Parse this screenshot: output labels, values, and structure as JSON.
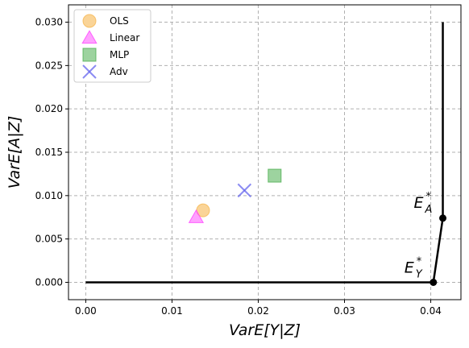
{
  "chart_data": {
    "type": "scatter",
    "xlabel": "VarE[Y|Z]",
    "ylabel": "VarE[A|Z]",
    "xlim": [
      -0.002,
      0.0435
    ],
    "ylim": [
      -0.002,
      0.032
    ],
    "xticks": [
      0.0,
      0.01,
      0.02,
      0.03,
      0.04
    ],
    "xtick_labels": [
      "0.00",
      "0.01",
      "0.02",
      "0.03",
      "0.04"
    ],
    "yticks": [
      0.0,
      0.005,
      0.01,
      0.015,
      0.02,
      0.025,
      0.03
    ],
    "ytick_labels": [
      "0.000",
      "0.005",
      "0.010",
      "0.015",
      "0.020",
      "0.025",
      "0.030"
    ],
    "grid": true,
    "legend_position": "top-left",
    "series": [
      {
        "name": "OLS",
        "marker": "circle",
        "color": "#f5b041",
        "points": [
          [
            0.0136,
            0.0083
          ]
        ]
      },
      {
        "name": "Linear",
        "marker": "triangle",
        "color": "#ff44ff",
        "points": [
          [
            0.0128,
            0.0075
          ]
        ]
      },
      {
        "name": "MLP",
        "marker": "square",
        "color": "#4caf50",
        "points": [
          [
            0.0219,
            0.0123
          ]
        ]
      },
      {
        "name": "Adv",
        "marker": "x",
        "color": "#6666ee",
        "points": [
          [
            0.0184,
            0.0106
          ]
        ]
      }
    ],
    "frontier": {
      "color": "#000000",
      "points": [
        [
          0.0,
          0.0
        ],
        [
          0.0403,
          0.0
        ],
        [
          0.0414,
          0.0074
        ],
        [
          0.0414,
          0.03
        ]
      ],
      "marked_points": [
        [
          0.0403,
          0.0
        ],
        [
          0.0414,
          0.0074
        ]
      ]
    },
    "annotations": [
      {
        "main": "E",
        "sub": "Y",
        "sup": "*",
        "x": 0.0403,
        "y": 0.0
      },
      {
        "main": "E",
        "sub": "A",
        "sup": "*",
        "x": 0.0414,
        "y": 0.0074
      }
    ]
  }
}
